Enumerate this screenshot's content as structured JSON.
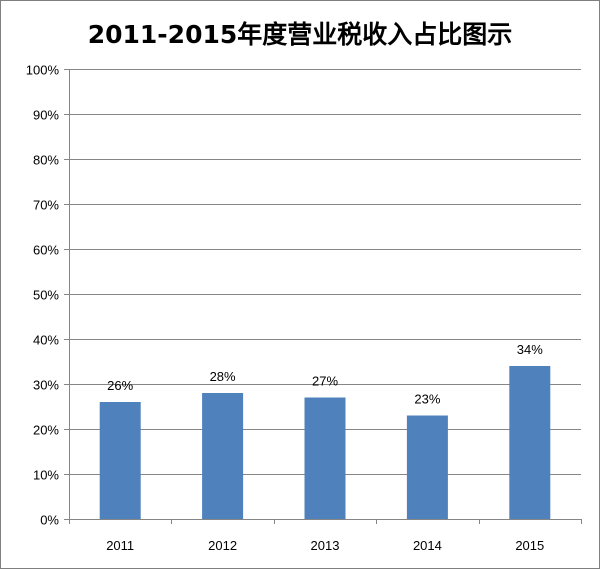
{
  "chart_data": {
    "type": "bar",
    "title": "2011-2015年度营业税收入占比图示",
    "categories": [
      "2011",
      "2012",
      "2013",
      "2014",
      "2015"
    ],
    "values": [
      26,
      28,
      27,
      23,
      34
    ],
    "data_labels": [
      "26%",
      "28%",
      "27%",
      "23%",
      "34%"
    ],
    "ylim": [
      0,
      100
    ],
    "yticks": [
      0,
      10,
      20,
      30,
      40,
      50,
      60,
      70,
      80,
      90,
      100
    ],
    "ytick_labels": [
      "0%",
      "10%",
      "20%",
      "30%",
      "40%",
      "50%",
      "60%",
      "70%",
      "80%",
      "90%",
      "100%"
    ],
    "grid": true,
    "legend": "none",
    "colors": {
      "bar": "#4f81bd",
      "gridline": "#868686",
      "axis": "#868686",
      "border": "#7f7f7f"
    }
  }
}
